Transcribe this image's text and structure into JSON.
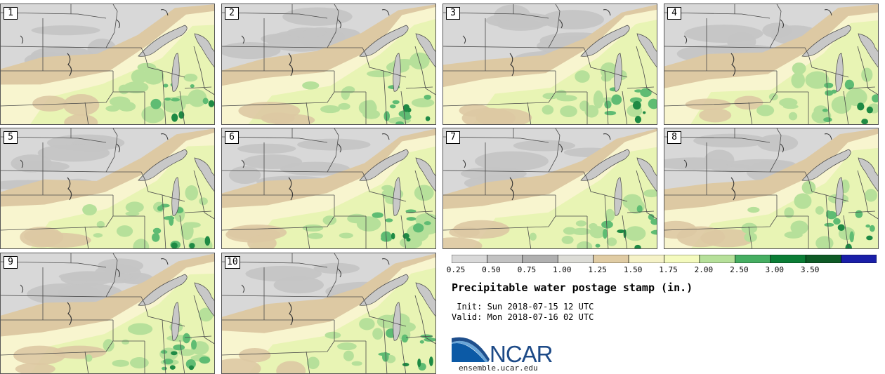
{
  "title": "Precipitable water postage stamp (in.)",
  "init_text": " Init: Sun 2018-07-15 12 UTC",
  "valid_text": "Valid: Mon 2018-07-16 02 UTC",
  "logo_text": "NCAR",
  "url_text": "ensemble.ucar.edu",
  "ensemble_members": [
    "1",
    "2",
    "3",
    "4",
    "5",
    "6",
    "7",
    "8",
    "9",
    "10"
  ],
  "legend": {
    "unit": "in.",
    "thresholds": [
      "0.25",
      "0.50",
      "0.75",
      "1.00",
      "1.25",
      "1.50",
      "1.75",
      "2.00",
      "2.50",
      "3.00",
      "3.50"
    ],
    "colors": [
      "#d9d9d9",
      "#c2c2c2",
      "#b0b0b0",
      "#dcdcd6",
      "#e0cca4",
      "#f5f2c7",
      "#f4fabe",
      "#b6e09a",
      "#46ae62",
      "#0b7d36",
      "#0e5a26",
      "#1a1fa8"
    ]
  },
  "map_colors": {
    "very_dry": "#c4c4c4",
    "dry": "#d8d8d8",
    "tan": "#ddc9a3",
    "cream": "#f8f5cf",
    "light_green": "#e8f4b4",
    "mid_green": "#b6e09a",
    "green": "#5fbc73",
    "dark_green": "#1e8a44",
    "water": "#c8c8c8",
    "borders": "#4a4a4a"
  }
}
